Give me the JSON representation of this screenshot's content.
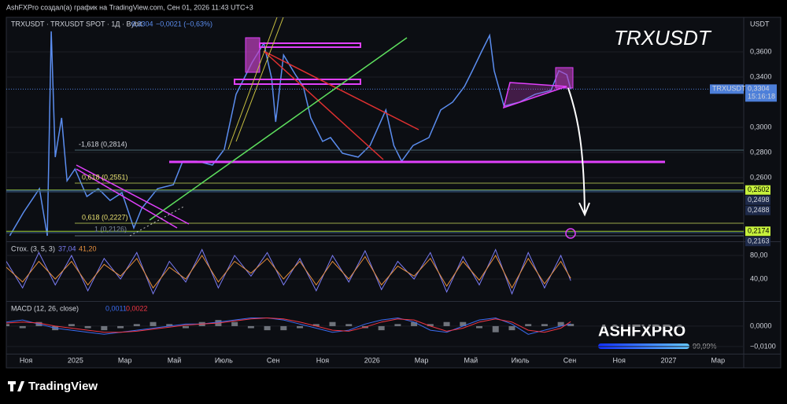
{
  "header": {
    "attribution": "AshFXPro создал(а) график на TradingView.com, Сен 01, 2026 11:43 UTC+3",
    "symbol": "TRXUSDT · TRXUSDT SPOT · 1Д · Bybit",
    "quote": "0,3304",
    "change": "−0,0021 (−0,63%)"
  },
  "watermark": "TRXUSDT",
  "brand": {
    "name": "ASHFXPRO",
    "progress": "99,99%"
  },
  "footer": "TradingView",
  "axis_unit": "USDT",
  "annotations": [
    "-1,618 (0,2814)",
    "0,618 (0,2551)",
    "0,618 (0,2227)",
    "1 (0,2126)"
  ],
  "chart_data": [
    {
      "type": "line",
      "xlim": [
        -0.8,
        29.04
      ],
      "xticks": [
        {
          "value": 0,
          "label": "Ноя"
        },
        {
          "value": 2,
          "label": "2025"
        },
        {
          "value": 4,
          "label": "Мар"
        },
        {
          "value": 6,
          "label": "Май"
        },
        {
          "value": 8,
          "label": "Июль"
        },
        {
          "value": 10,
          "label": "Сен"
        },
        {
          "value": 12,
          "label": "Ноя"
        },
        {
          "value": 14,
          "label": "2026"
        },
        {
          "value": 16,
          "label": "Мар"
        },
        {
          "value": 18,
          "label": "Май"
        },
        {
          "value": 20,
          "label": "Июль"
        },
        {
          "value": 22,
          "label": "Сен"
        },
        {
          "value": 24,
          "label": "Ноя"
        },
        {
          "value": 26,
          "label": "2027"
        },
        {
          "value": 28,
          "label": "Мар"
        }
      ],
      "ylim": [
        0.2094,
        0.3875
      ],
      "yticks": [
        {
          "value": 0.36,
          "label": "0,3600"
        },
        {
          "value": 0.34,
          "label": "0,3400"
        },
        {
          "value": 0.3,
          "label": "0,3000"
        },
        {
          "value": 0.28,
          "label": "0,2800"
        },
        {
          "value": 0.26,
          "label": "0,2600"
        }
      ],
      "grid": true,
      "series": [
        {
          "name": "TRXUSDT",
          "color": "#5b8def",
          "x": [
            -0.66,
            -0.1,
            0.54,
            0.86,
            1.02,
            1.18,
            1.44,
            1.66,
            1.98,
            2.46,
            2.92,
            3.4,
            3.88,
            4.36,
            4.68,
            5.32,
            5.96,
            6.34,
            6.92,
            7.54,
            8.02,
            8.5,
            9.14,
            9.62,
            9.94,
            10.1,
            10.42,
            10.9,
            11.22,
            11.52,
            12,
            12.32,
            12.8,
            13.44,
            13.92,
            14.56,
            14.88,
            15.2,
            15.66,
            16.3,
            16.78,
            17.26,
            17.74,
            18.06,
            18.44,
            18.76,
            18.94,
            19.34,
            19.96,
            20.6,
            21.24,
            21.56,
            21.88,
            22.04
          ],
          "values": [
            0.2138,
            0.2325,
            0.2513,
            0.2138,
            0.3763,
            0.2763,
            0.3075,
            0.2575,
            0.2669,
            0.245,
            0.2513,
            0.2419,
            0.2481,
            0.22,
            0.2356,
            0.2513,
            0.2544,
            0.2731,
            0.2731,
            0.27,
            0.2825,
            0.3263,
            0.3513,
            0.3669,
            0.3388,
            0.3044,
            0.3575,
            0.3419,
            0.3325,
            0.3075,
            0.2888,
            0.2919,
            0.2794,
            0.2763,
            0.2856,
            0.3138,
            0.2856,
            0.2731,
            0.2856,
            0.2919,
            0.3138,
            0.32,
            0.3325,
            0.345,
            0.3606,
            0.3731,
            0.345,
            0.3169,
            0.32,
            0.3263,
            0.3294,
            0.345,
            0.3419,
            0.3304
          ]
        }
      ],
      "last_price": {
        "value": 0.3304,
        "label": "0,3304",
        "name": "TRXUSDT",
        "countdown": "15:16:18",
        "color": "#4d7fd9"
      },
      "price_levels": [
        {
          "value": 0.2502,
          "label": "0,2502",
          "color": "#c6f03c"
        },
        {
          "value": 0.2498,
          "label": "0,2498",
          "color": "#1e2a4a"
        },
        {
          "value": 0.2488,
          "label": "0,2488",
          "color": "#1e2a4a"
        },
        {
          "value": 0.2174,
          "label": "0,2174",
          "color": "#c6f03c"
        },
        {
          "value": 0.2163,
          "label": "0,2163",
          "color": "#1e2a4a"
        }
      ]
    },
    {
      "type": "line",
      "title": "Стох. (3, 5, 3)",
      "ylim": [
        2.7,
        102.7
      ],
      "yticks": [
        {
          "value": 80,
          "label": "80,00"
        },
        {
          "value": 40,
          "label": "40,00"
        }
      ],
      "x": [
        -0.8,
        -0.14,
        0.52,
        1.18,
        1.84,
        2.5,
        3.16,
        3.82,
        4.48,
        5.14,
        5.8,
        6.46,
        7.12,
        7.78,
        8.44,
        9.1,
        9.76,
        10.42,
        11.08,
        11.74,
        12.4,
        13.06,
        13.72,
        14.38,
        15.04,
        15.7,
        16.36,
        17.02,
        17.68,
        18.34,
        19,
        19.66,
        20.32,
        20.98,
        21.64,
        22.04
      ],
      "series": [
        {
          "name": "37,04",
          "color": "#7b7cf5",
          "values": [
            70,
            25,
            85,
            30,
            80,
            20,
            75,
            40,
            85,
            15,
            70,
            35,
            90,
            25,
            80,
            45,
            85,
            30,
            75,
            20,
            80,
            35,
            88,
            22,
            70,
            40,
            85,
            18,
            78,
            30,
            90,
            15,
            85,
            25,
            80,
            37.04
          ]
        },
        {
          "name": "41,20",
          "color": "#e8903d",
          "values": [
            60,
            35,
            70,
            40,
            70,
            30,
            65,
            45,
            75,
            25,
            60,
            40,
            80,
            35,
            70,
            50,
            75,
            40,
            70,
            30,
            70,
            40,
            78,
            30,
            62,
            45,
            75,
            28,
            70,
            38,
            80,
            25,
            75,
            32,
            70,
            41.2
          ]
        }
      ]
    },
    {
      "type": "macd",
      "title": "MACD (12, 26, close)",
      "ylim": [
        -0.0135,
        0.0119
      ],
      "yticks": [
        {
          "value": 0,
          "label": "0,0000"
        },
        {
          "value": -0.01,
          "label": "−0,0100"
        }
      ],
      "x": [
        -0.8,
        -0.14,
        0.52,
        1.18,
        1.84,
        2.5,
        3.16,
        3.82,
        4.48,
        5.14,
        5.8,
        6.46,
        7.12,
        7.78,
        8.44,
        9.1,
        9.76,
        10.42,
        11.08,
        11.74,
        12.4,
        13.06,
        13.72,
        14.38,
        15.04,
        15.7,
        16.36,
        17.02,
        17.68,
        18.34,
        19,
        19.66,
        20.32,
        20.98,
        21.64,
        22.04
      ],
      "values": [
        0.001,
        -0.001,
        0.002,
        -0.002,
        0.001,
        -0.001,
        -0.002,
        -0.001,
        0.001,
        0.002,
        0.001,
        -0.001,
        0.002,
        0.003,
        0.002,
        -0.001,
        -0.002,
        -0.002,
        -0.001,
        0.001,
        0.002,
        0.001,
        -0.001,
        -0.002,
        0.001,
        0.002,
        0.001,
        0.002,
        0.002,
        -0.001,
        -0.003,
        -0.002,
        0.001,
        0.001,
        0.002,
        0.0011
      ],
      "color": "#9a9ea8",
      "series": [
        {
          "name": "0,0011",
          "color": "#3b6cf0",
          "values": [
            0.002,
            0.003,
            0.001,
            -0.001,
            -0.002,
            -0.003,
            -0.004,
            -0.003,
            -0.002,
            -0.001,
            0,
            0.001,
            0.001,
            0.002,
            0.003,
            0.004,
            0.004,
            0.003,
            0.001,
            -0.001,
            -0.003,
            -0.002,
            0.001,
            0.003,
            0.004,
            0.002,
            -0.002,
            -0.003,
            0,
            0.003,
            0.004,
            0.001,
            -0.004,
            -0.002,
            0,
            0.0011
          ]
        },
        {
          "name": "0,0022",
          "color": "#f23645",
          "values": [
            0.0015,
            0.002,
            0.0015,
            0,
            -0.001,
            -0.002,
            -0.003,
            -0.003,
            -0.0025,
            -0.0015,
            -0.0005,
            0.0005,
            0.001,
            0.0015,
            0.0025,
            0.0035,
            0.004,
            0.0035,
            0.002,
            0,
            -0.002,
            -0.0025,
            -0.0005,
            0.002,
            0.0035,
            0.003,
            0,
            -0.0025,
            -0.001,
            0.002,
            0.0035,
            0.002,
            -0.002,
            -0.003,
            -0.001,
            0.0022
          ]
        }
      ]
    }
  ]
}
